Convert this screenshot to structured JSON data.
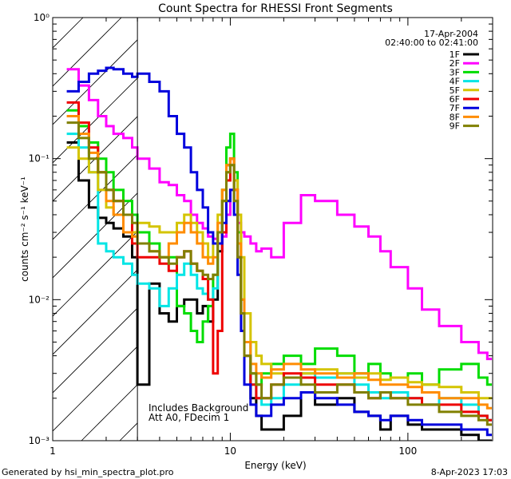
{
  "chart_data": {
    "type": "line",
    "title": "Count Spectra for RHESSI Front Segments",
    "xlabel": "Energy (keV)",
    "ylabel": "counts cm⁻² s⁻¹ keV⁻¹",
    "xscale": "log",
    "yscale": "log",
    "xlim": [
      1,
      300
    ],
    "ylim": [
      0.001,
      1.0
    ],
    "x_tick_labels": [
      {
        "value": 1,
        "label": "1"
      },
      {
        "value": 10,
        "label": "10"
      },
      {
        "value": 100,
        "label": "100"
      }
    ],
    "y_tick_labels": [
      {
        "value": 1.0,
        "label": "10⁰"
      },
      {
        "value": 0.1,
        "label": "10⁻¹"
      },
      {
        "value": 0.01,
        "label": "10⁻²"
      },
      {
        "value": 0.001,
        "label": "10⁻³"
      }
    ],
    "date": "17-Apr-2004",
    "time_range": "02:40:00 to 02:41:00",
    "shaded_region": {
      "x_min": 1,
      "x_max": 3,
      "pattern": "diagonal-hatch"
    },
    "annotations": [
      "Includes Background",
      "Att A0, FDecim 1"
    ],
    "series": [
      {
        "name": "1F",
        "color": "#000000",
        "x": [
          1.2,
          1.4,
          1.6,
          1.8,
          2.0,
          2.2,
          2.5,
          2.8,
          3.0,
          3.5,
          4.0,
          4.5,
          5.0,
          5.5,
          6.0,
          6.5,
          7.0,
          7.5,
          8.0,
          8.5,
          9.0,
          9.5,
          10.0,
          10.5,
          11.0,
          11.5,
          12.0,
          13.0,
          14.0,
          15.0,
          17.0,
          20.0,
          25.0,
          30.0,
          40.0,
          50.0,
          60.0,
          70.0,
          80.0,
          100.0,
          120.0,
          150.0,
          200.0,
          250.0,
          280.0
        ],
        "y": [
          0.13,
          0.07,
          0.045,
          0.038,
          0.035,
          0.032,
          0.028,
          0.02,
          0.0025,
          0.013,
          0.008,
          0.007,
          0.009,
          0.01,
          0.01,
          0.008,
          0.009,
          0.007,
          0.01,
          0.022,
          0.05,
          0.09,
          0.1,
          0.06,
          0.02,
          0.008,
          0.004,
          0.002,
          0.0015,
          0.0012,
          0.0012,
          0.0015,
          0.0022,
          0.0018,
          0.002,
          0.0016,
          0.0015,
          0.0012,
          0.0015,
          0.0013,
          0.0012,
          0.0012,
          0.0011,
          0.001,
          0.001
        ]
      },
      {
        "name": "2F",
        "color": "#ff00ff",
        "x": [
          1.2,
          1.4,
          1.6,
          1.8,
          2.0,
          2.2,
          2.5,
          2.8,
          3.0,
          3.5,
          4.0,
          4.5,
          5.0,
          5.5,
          6.0,
          6.5,
          7.0,
          7.5,
          8.0,
          8.5,
          9.0,
          9.5,
          10.0,
          10.5,
          11.0,
          11.5,
          12.0,
          13.0,
          14.0,
          15.0,
          17.0,
          20.0,
          25.0,
          30.0,
          40.0,
          50.0,
          60.0,
          70.0,
          80.0,
          100.0,
          120.0,
          150.0,
          200.0,
          250.0,
          280.0
        ],
        "y": [
          0.43,
          0.33,
          0.26,
          0.2,
          0.17,
          0.15,
          0.14,
          0.12,
          0.1,
          0.085,
          0.068,
          0.065,
          0.055,
          0.05,
          0.04,
          0.035,
          0.032,
          0.028,
          0.027,
          0.025,
          0.028,
          0.04,
          0.06,
          0.05,
          0.035,
          0.03,
          0.028,
          0.025,
          0.022,
          0.023,
          0.02,
          0.035,
          0.055,
          0.05,
          0.04,
          0.033,
          0.028,
          0.022,
          0.017,
          0.012,
          0.0085,
          0.0065,
          0.005,
          0.0042,
          0.0038
        ]
      },
      {
        "name": "3F",
        "color": "#00dd00",
        "x": [
          1.2,
          1.4,
          1.6,
          1.8,
          2.0,
          2.2,
          2.5,
          2.8,
          3.0,
          3.5,
          4.0,
          4.5,
          5.0,
          5.5,
          6.0,
          6.5,
          7.0,
          7.5,
          8.0,
          8.5,
          9.0,
          9.5,
          10.0,
          10.5,
          11.0,
          11.5,
          12.0,
          13.0,
          14.0,
          15.0,
          17.0,
          20.0,
          25.0,
          30.0,
          40.0,
          50.0,
          60.0,
          70.0,
          80.0,
          100.0,
          120.0,
          150.0,
          200.0,
          250.0,
          280.0
        ],
        "y": [
          0.22,
          0.17,
          0.13,
          0.1,
          0.08,
          0.06,
          0.05,
          0.04,
          0.03,
          0.025,
          0.02,
          0.02,
          0.009,
          0.008,
          0.006,
          0.005,
          0.007,
          0.009,
          0.015,
          0.03,
          0.06,
          0.12,
          0.15,
          0.08,
          0.03,
          0.01,
          0.005,
          0.003,
          0.0025,
          0.003,
          0.0035,
          0.004,
          0.0035,
          0.0045,
          0.004,
          0.003,
          0.0035,
          0.003,
          0.0028,
          0.003,
          0.0025,
          0.0032,
          0.0035,
          0.0028,
          0.0025
        ]
      },
      {
        "name": "4F",
        "color": "#00e5e5",
        "x": [
          1.2,
          1.4,
          1.6,
          1.8,
          2.0,
          2.2,
          2.5,
          2.8,
          3.0,
          3.5,
          4.0,
          4.5,
          5.0,
          5.5,
          6.0,
          6.5,
          7.0,
          7.5,
          8.0,
          8.5,
          9.0,
          9.5,
          10.0,
          10.5,
          11.0,
          11.5,
          12.0,
          13.0,
          14.0,
          15.0,
          17.0,
          20.0,
          25.0,
          30.0,
          40.0,
          50.0,
          60.0,
          70.0,
          80.0,
          100.0,
          120.0,
          150.0,
          200.0,
          250.0,
          280.0
        ],
        "y": [
          0.15,
          0.12,
          0.08,
          0.025,
          0.022,
          0.02,
          0.018,
          0.015,
          0.013,
          0.012,
          0.009,
          0.012,
          0.015,
          0.018,
          0.015,
          0.012,
          0.011,
          0.01,
          0.012,
          0.025,
          0.05,
          0.08,
          0.09,
          0.05,
          0.02,
          0.008,
          0.004,
          0.0025,
          0.002,
          0.0018,
          0.002,
          0.0025,
          0.003,
          0.0028,
          0.003,
          0.0025,
          0.0022,
          0.002,
          0.0022,
          0.002,
          0.0018,
          0.002,
          0.0018,
          0.0015,
          0.0014
        ]
      },
      {
        "name": "5F",
        "color": "#d4c400",
        "x": [
          1.2,
          1.4,
          1.6,
          1.8,
          2.0,
          2.2,
          2.5,
          2.8,
          3.0,
          3.5,
          4.0,
          4.5,
          5.0,
          5.5,
          6.0,
          6.5,
          7.0,
          7.5,
          8.0,
          8.5,
          9.0,
          9.5,
          10.0,
          10.5,
          11.0,
          11.5,
          12.0,
          13.0,
          14.0,
          15.0,
          17.0,
          20.0,
          25.0,
          30.0,
          40.0,
          50.0,
          60.0,
          70.0,
          80.0,
          100.0,
          120.0,
          150.0,
          200.0,
          250.0,
          280.0
        ],
        "y": [
          0.12,
          0.1,
          0.08,
          0.06,
          0.045,
          0.04,
          0.03,
          0.03,
          0.035,
          0.033,
          0.03,
          0.03,
          0.035,
          0.04,
          0.035,
          0.03,
          0.025,
          0.02,
          0.025,
          0.04,
          0.06,
          0.08,
          0.1,
          0.07,
          0.04,
          0.02,
          0.008,
          0.005,
          0.004,
          0.0035,
          0.003,
          0.0028,
          0.003,
          0.0032,
          0.003,
          0.0028,
          0.003,
          0.0027,
          0.0028,
          0.0026,
          0.0025,
          0.0024,
          0.0022,
          0.002,
          0.002
        ]
      },
      {
        "name": "6F",
        "color": "#ee0000",
        "x": [
          1.2,
          1.4,
          1.6,
          1.8,
          2.0,
          2.2,
          2.5,
          2.8,
          3.0,
          3.5,
          4.0,
          4.5,
          5.0,
          5.5,
          6.0,
          6.5,
          7.0,
          7.5,
          8.0,
          8.5,
          9.0,
          9.5,
          10.0,
          10.5,
          11.0,
          11.5,
          12.0,
          13.0,
          14.0,
          15.0,
          17.0,
          20.0,
          25.0,
          30.0,
          40.0,
          50.0,
          60.0,
          70.0,
          80.0,
          100.0,
          120.0,
          150.0,
          200.0,
          250.0,
          280.0
        ],
        "y": [
          0.25,
          0.18,
          0.12,
          0.08,
          0.06,
          0.05,
          0.04,
          0.025,
          0.02,
          0.02,
          0.018,
          0.016,
          0.02,
          0.022,
          0.018,
          0.016,
          0.014,
          0.01,
          0.003,
          0.006,
          0.03,
          0.07,
          0.1,
          0.06,
          0.02,
          0.008,
          0.004,
          0.0025,
          0.002,
          0.002,
          0.0025,
          0.003,
          0.0028,
          0.0025,
          0.0025,
          0.0022,
          0.002,
          0.0022,
          0.002,
          0.002,
          0.0018,
          0.0018,
          0.0016,
          0.0015,
          0.0014
        ]
      },
      {
        "name": "7F",
        "color": "#0000dd",
        "x": [
          1.2,
          1.4,
          1.6,
          1.8,
          2.0,
          2.2,
          2.5,
          2.8,
          3.0,
          3.5,
          4.0,
          4.5,
          5.0,
          5.5,
          6.0,
          6.5,
          7.0,
          7.5,
          8.0,
          8.5,
          9.0,
          9.5,
          10.0,
          10.5,
          11.0,
          11.5,
          12.0,
          13.0,
          14.0,
          15.0,
          17.0,
          20.0,
          25.0,
          30.0,
          40.0,
          50.0,
          60.0,
          70.0,
          80.0,
          100.0,
          120.0,
          150.0,
          200.0,
          250.0,
          280.0
        ],
        "y": [
          0.3,
          0.35,
          0.4,
          0.42,
          0.44,
          0.43,
          0.4,
          0.38,
          0.4,
          0.35,
          0.3,
          0.2,
          0.15,
          0.12,
          0.08,
          0.06,
          0.045,
          0.03,
          0.025,
          0.025,
          0.035,
          0.05,
          0.06,
          0.04,
          0.015,
          0.006,
          0.0025,
          0.0018,
          0.0015,
          0.0015,
          0.0018,
          0.002,
          0.0022,
          0.002,
          0.0018,
          0.0016,
          0.0015,
          0.0014,
          0.0015,
          0.0014,
          0.0013,
          0.0013,
          0.0012,
          0.0012,
          0.0011
        ]
      },
      {
        "name": "8F",
        "color": "#ff8c00",
        "x": [
          1.2,
          1.4,
          1.6,
          1.8,
          2.0,
          2.2,
          2.5,
          2.8,
          3.0,
          3.5,
          4.0,
          4.5,
          5.0,
          5.5,
          6.0,
          6.5,
          7.0,
          7.5,
          8.0,
          8.5,
          9.0,
          9.5,
          10.0,
          10.5,
          11.0,
          11.5,
          12.0,
          13.0,
          14.0,
          15.0,
          17.0,
          20.0,
          25.0,
          30.0,
          40.0,
          50.0,
          60.0,
          70.0,
          80.0,
          100.0,
          120.0,
          150.0,
          200.0,
          250.0,
          280.0
        ],
        "y": [
          0.2,
          0.15,
          0.11,
          0.08,
          0.05,
          0.04,
          0.03,
          0.028,
          0.025,
          0.022,
          0.02,
          0.025,
          0.03,
          0.035,
          0.03,
          0.025,
          0.02,
          0.018,
          0.02,
          0.035,
          0.06,
          0.09,
          0.1,
          0.06,
          0.025,
          0.01,
          0.005,
          0.0035,
          0.003,
          0.0028,
          0.0032,
          0.0035,
          0.0032,
          0.003,
          0.0028,
          0.003,
          0.0027,
          0.0025,
          0.0025,
          0.0024,
          0.0022,
          0.002,
          0.002,
          0.0018,
          0.0017
        ]
      },
      {
        "name": "9F",
        "color": "#808000",
        "x": [
          1.2,
          1.4,
          1.6,
          1.8,
          2.0,
          2.2,
          2.5,
          2.8,
          3.0,
          3.5,
          4.0,
          4.5,
          5.0,
          5.5,
          6.0,
          6.5,
          7.0,
          7.5,
          8.0,
          8.5,
          9.0,
          9.5,
          10.0,
          10.5,
          11.0,
          11.5,
          12.0,
          13.0,
          14.0,
          15.0,
          17.0,
          20.0,
          25.0,
          30.0,
          40.0,
          50.0,
          60.0,
          70.0,
          80.0,
          100.0,
          120.0,
          150.0,
          200.0,
          250.0,
          280.0
        ],
        "y": [
          0.18,
          0.14,
          0.1,
          0.08,
          0.06,
          0.05,
          0.04,
          0.035,
          0.025,
          0.022,
          0.02,
          0.018,
          0.02,
          0.022,
          0.018,
          0.016,
          0.015,
          0.014,
          0.015,
          0.03,
          0.05,
          0.08,
          0.09,
          0.05,
          0.02,
          0.008,
          0.004,
          0.003,
          0.0025,
          0.002,
          0.0025,
          0.0028,
          0.0025,
          0.0022,
          0.0025,
          0.0022,
          0.002,
          0.0022,
          0.002,
          0.0018,
          0.0018,
          0.0016,
          0.0015,
          0.0014,
          0.0013
        ]
      }
    ]
  },
  "footer": {
    "generated_by": "Generated by hsi_min_spectra_plot.pro",
    "timestamp": "8-Apr-2023 17:03"
  }
}
